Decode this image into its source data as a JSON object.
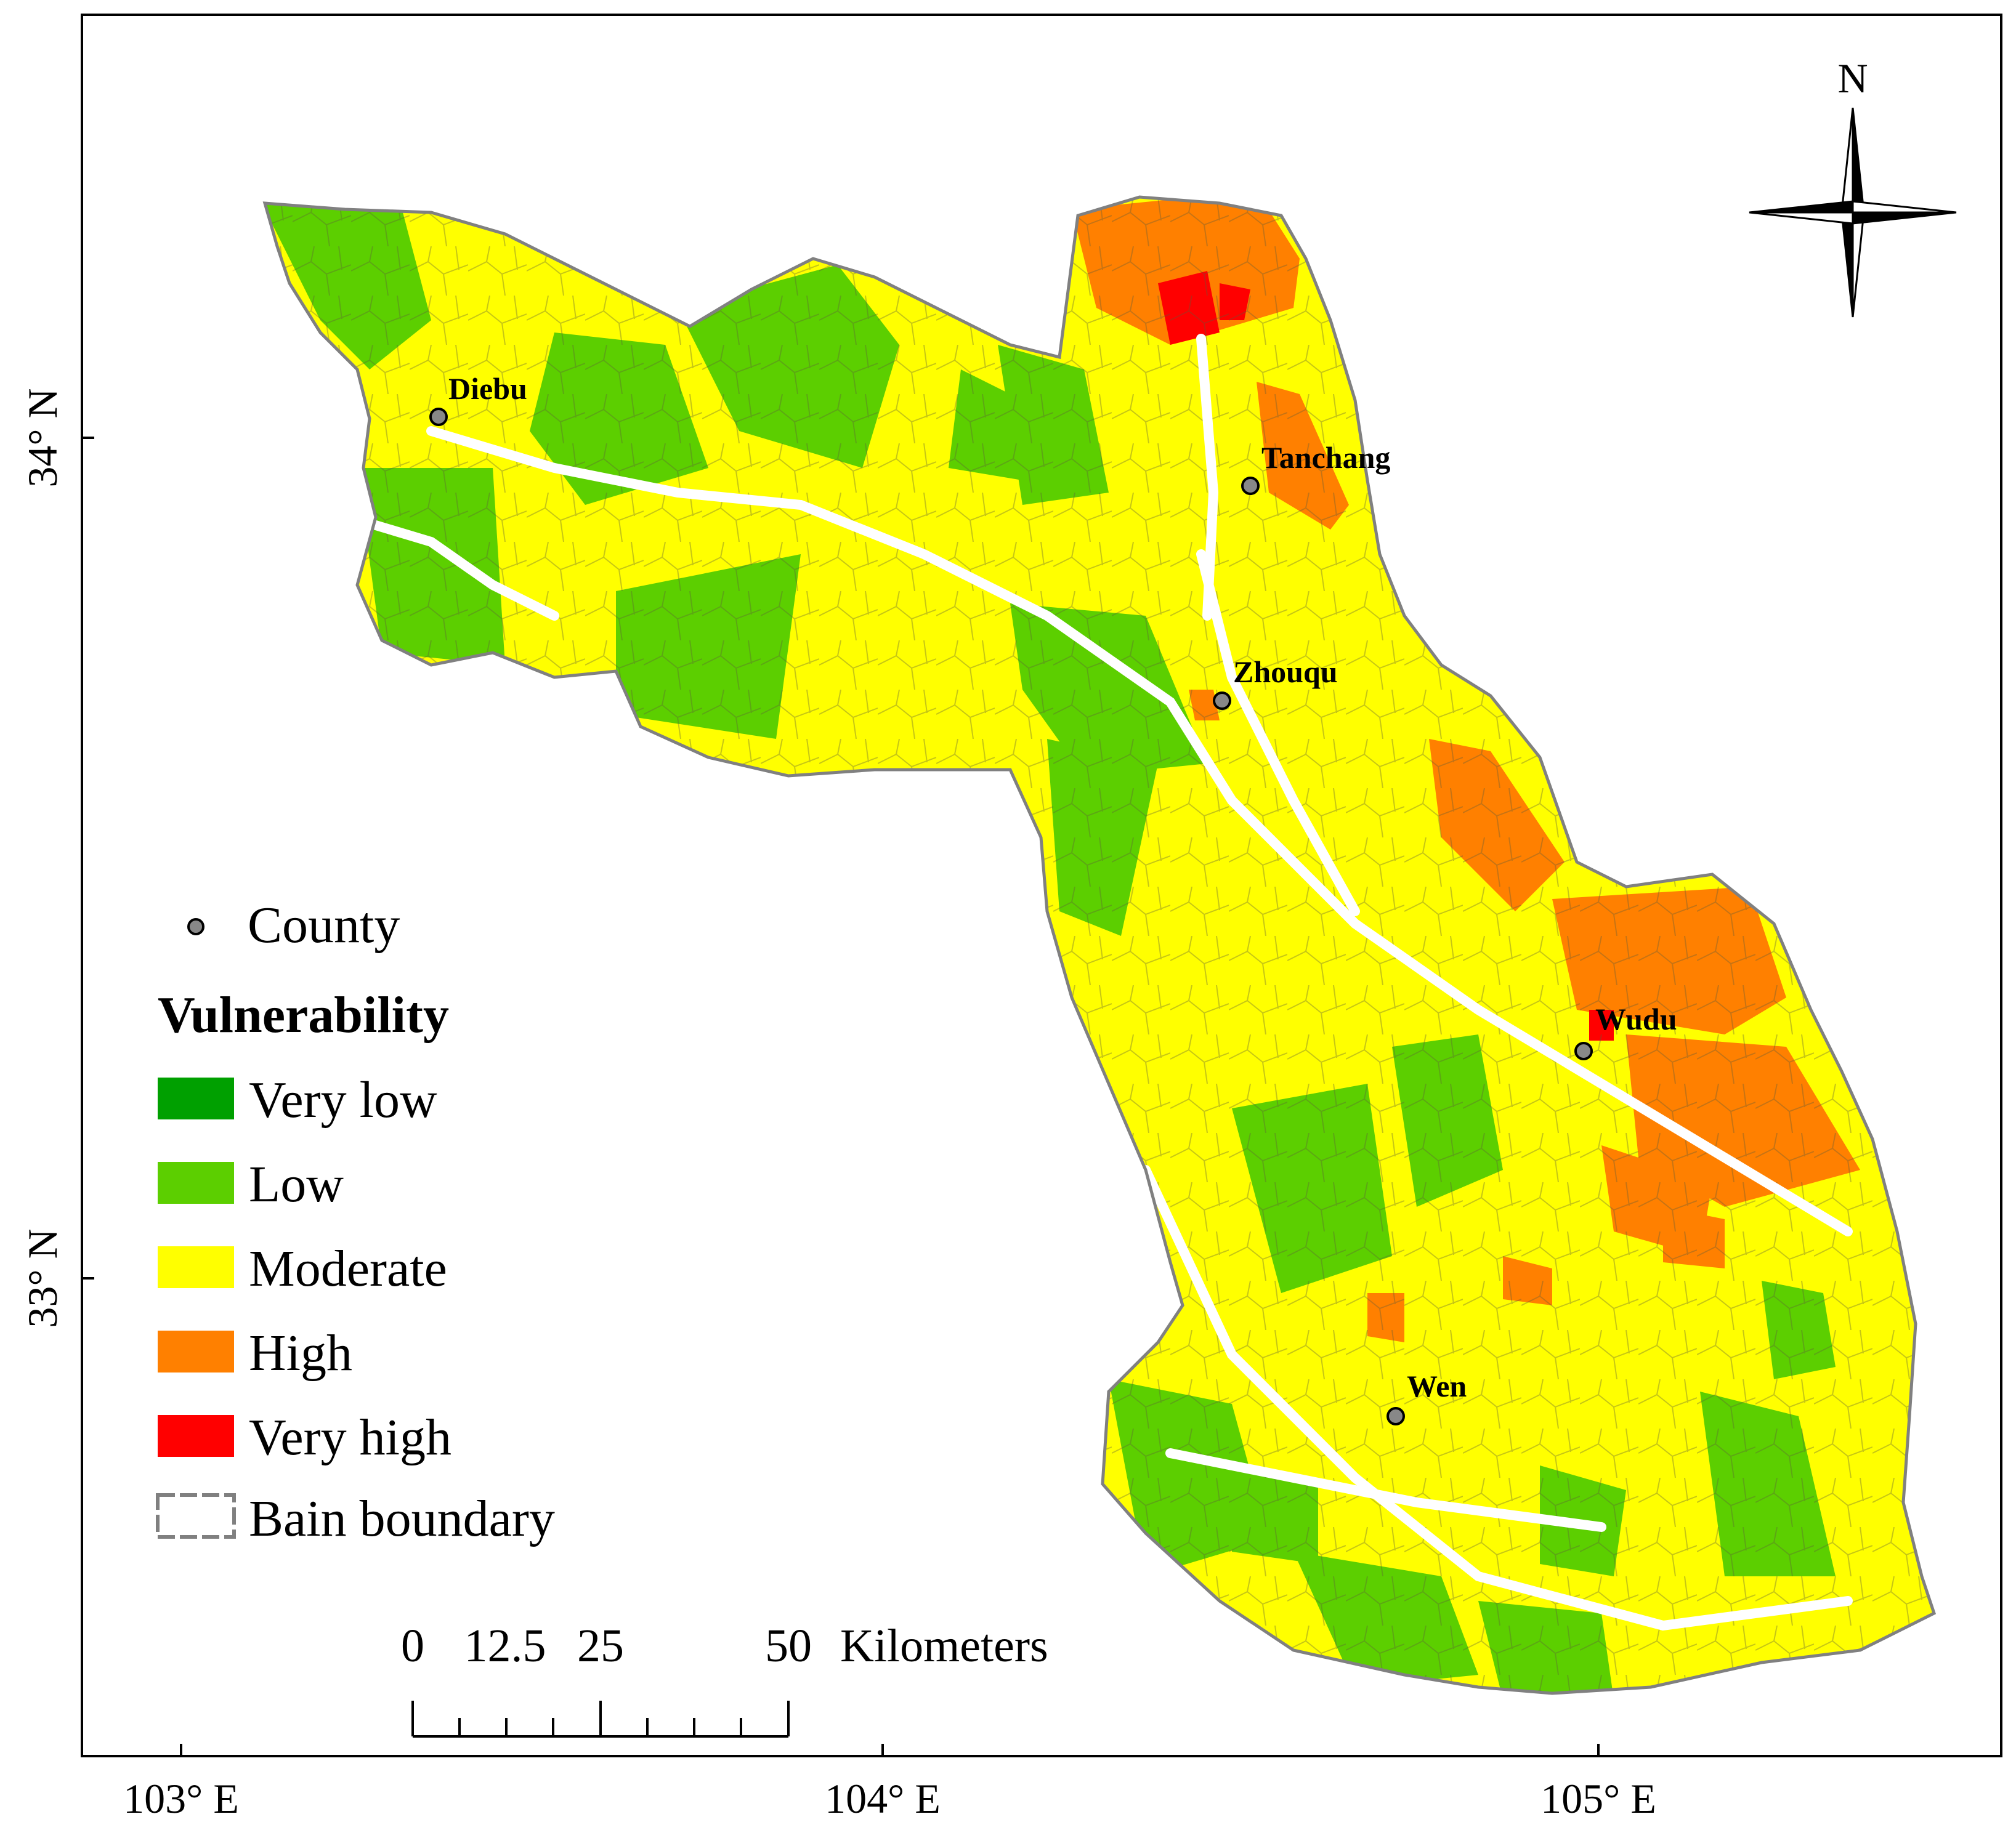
{
  "map": {
    "north_arrow_label": "N",
    "lat_labels": [
      "34° N",
      "33° N"
    ],
    "lon_labels": [
      "103° E",
      "104° E",
      "105° E"
    ],
    "counties": [
      {
        "name": "Diebu"
      },
      {
        "name": "Tanchang"
      },
      {
        "name": "Zhouqu"
      },
      {
        "name": "Wudu"
      },
      {
        "name": "Wen"
      }
    ]
  },
  "legend": {
    "county_label": "County",
    "title": "Vulnerability",
    "classes": [
      {
        "label": "Very low",
        "color": "#00a000"
      },
      {
        "label": "Low",
        "color": "#5ccf00"
      },
      {
        "label": "Moderate",
        "color": "#ffff00"
      },
      {
        "label": "High",
        "color": "#ff8000"
      },
      {
        "label": "Very high",
        "color": "#ff0000"
      }
    ],
    "boundary_label": "Bain boundary"
  },
  "scale_bar": {
    "ticks": [
      "0",
      "12.5",
      "25",
      "50"
    ],
    "unit": "Kilometers"
  },
  "colors": {
    "low_green": "#5ccf00",
    "moderate_yellow": "#ffff00",
    "high_orange": "#ff8000",
    "very_high_red": "#ff0000",
    "boundary_gray": "#808080"
  }
}
